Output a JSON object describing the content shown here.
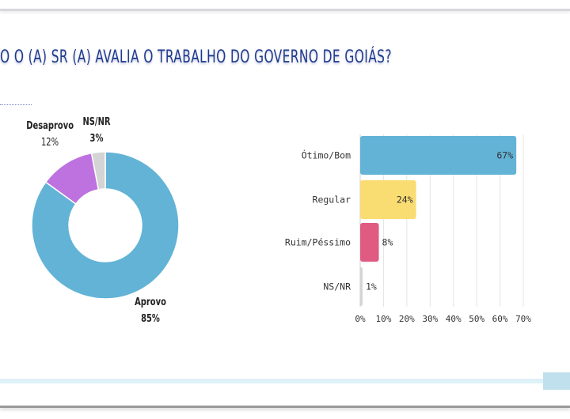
{
  "slide": {
    "title": "O O (A) SR (A) AVALIA O TRABALHO DO GOVERNO DE GOIÁS?"
  },
  "chart_data": [
    {
      "type": "pie",
      "subtype": "donut",
      "categories": [
        "Aprovo",
        "Desaprovo",
        "NS/NR"
      ],
      "values": [
        85,
        12,
        3
      ],
      "labels": [
        "85%",
        "12%",
        "3%"
      ],
      "colors": [
        "#62b3d6",
        "#bd72e0",
        "#d4d4d4"
      ]
    },
    {
      "type": "bar",
      "orientation": "horizontal",
      "categories": [
        "Ótimo/Bom",
        "Regular",
        "Ruim/Péssimo",
        "NS/NR"
      ],
      "values": [
        67,
        24,
        8,
        1
      ],
      "labels": [
        "67%",
        "24%",
        "8%",
        "1%"
      ],
      "colors": [
        "#62b3d6",
        "#f9dd72",
        "#df5b82",
        "#d4d4d4"
      ],
      "xlim": [
        0,
        70
      ],
      "xticks": [
        "0%",
        "10%",
        "20%",
        "30%",
        "40%",
        "50%",
        "60%",
        "70%"
      ],
      "grid": true
    }
  ]
}
